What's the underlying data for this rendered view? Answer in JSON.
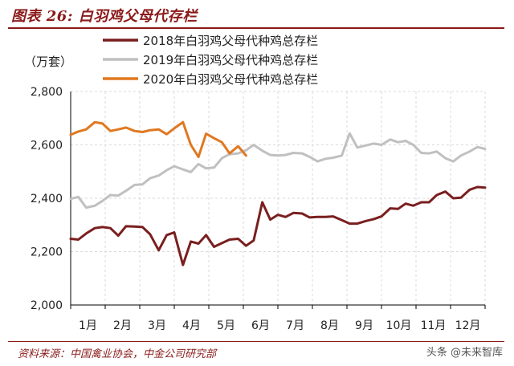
{
  "figure_title": "图表 26: 白羽鸡父母代存栏",
  "source": "资料来源：中国禽业协会，中金公司研究部",
  "watermark": "头条 @未来智库",
  "chart_data": {
    "type": "line",
    "unit_label": "（万套）",
    "ylim": [
      2000,
      2800
    ],
    "yticks": [
      2000,
      2200,
      2400,
      2600,
      2800
    ],
    "ytick_labels": [
      "2,000",
      "2,200",
      "2,400",
      "2,600",
      "2,800"
    ],
    "xlim": [
      0,
      12
    ],
    "xticks": [
      0,
      1,
      2,
      3,
      4,
      5,
      6,
      7,
      8,
      9,
      10,
      11,
      12
    ],
    "month_labels": [
      "1月",
      "2月",
      "3月",
      "4月",
      "5月",
      "6月",
      "7月",
      "8月",
      "9月",
      "10月",
      "11月",
      "12月"
    ],
    "grid": true,
    "legend_position": "top",
    "series": [
      {
        "name": "2018年白羽鸡父母代种鸡总存栏",
        "color": "#7a1f1f",
        "x": [
          0.0,
          0.22,
          0.45,
          0.7,
          0.92,
          1.15,
          1.38,
          1.6,
          1.85,
          2.08,
          2.3,
          2.55,
          2.78,
          3.0,
          3.25,
          3.48,
          3.7,
          3.92,
          4.15,
          4.38,
          4.6,
          4.85,
          5.08,
          5.3,
          5.55,
          5.78,
          6.0,
          6.22,
          6.45,
          6.7,
          6.92,
          7.15,
          7.38,
          7.6,
          7.85,
          8.08,
          8.3,
          8.55,
          8.78,
          9.0,
          9.25,
          9.48,
          9.7,
          9.92,
          10.15,
          10.38,
          10.6,
          10.85,
          11.08,
          11.3,
          11.55,
          11.78,
          12.0
        ],
        "y": [
          2248,
          2245,
          2268,
          2288,
          2292,
          2288,
          2260,
          2295,
          2294,
          2292,
          2265,
          2205,
          2262,
          2272,
          2150,
          2238,
          2230,
          2262,
          2218,
          2232,
          2245,
          2248,
          2222,
          2242,
          2385,
          2320,
          2338,
          2330,
          2345,
          2343,
          2328,
          2330,
          2330,
          2332,
          2318,
          2305,
          2305,
          2315,
          2322,
          2332,
          2362,
          2360,
          2380,
          2372,
          2385,
          2385,
          2412,
          2425,
          2400,
          2402,
          2432,
          2442,
          2440
        ]
      },
      {
        "name": "2019年白羽鸡父母代种鸡总存栏",
        "color": "#c0c0c0",
        "x": [
          0.0,
          0.22,
          0.45,
          0.7,
          0.92,
          1.15,
          1.38,
          1.6,
          1.85,
          2.08,
          2.3,
          2.55,
          2.78,
          3.0,
          3.25,
          3.48,
          3.7,
          3.92,
          4.15,
          4.38,
          4.6,
          4.85,
          5.08,
          5.3,
          5.55,
          5.78,
          6.0,
          6.22,
          6.45,
          6.7,
          6.92,
          7.15,
          7.38,
          7.6,
          7.85,
          8.08,
          8.3,
          8.55,
          8.78,
          9.0,
          9.25,
          9.48,
          9.7,
          9.92,
          10.15,
          10.38,
          10.6,
          10.85,
          11.08,
          11.3,
          11.55,
          11.78,
          12.0
        ],
        "y": [
          2398,
          2405,
          2365,
          2372,
          2390,
          2412,
          2410,
          2428,
          2450,
          2452,
          2475,
          2485,
          2505,
          2520,
          2508,
          2498,
          2528,
          2512,
          2515,
          2550,
          2565,
          2568,
          2580,
          2600,
          2578,
          2562,
          2560,
          2562,
          2570,
          2568,
          2555,
          2538,
          2548,
          2552,
          2560,
          2643,
          2590,
          2598,
          2605,
          2600,
          2620,
          2610,
          2615,
          2600,
          2570,
          2568,
          2575,
          2550,
          2538,
          2560,
          2575,
          2592,
          2585
        ]
      },
      {
        "name": "2020年白羽鸡父母代种鸡总存栏",
        "color": "#e07820",
        "x": [
          0.0,
          0.22,
          0.45,
          0.7,
          0.92,
          1.15,
          1.38,
          1.6,
          1.85,
          2.08,
          2.3,
          2.55,
          2.78,
          3.0,
          3.25,
          3.48,
          3.7,
          3.92,
          4.15,
          4.38,
          4.6,
          4.85,
          5.08
        ],
        "y": [
          2638,
          2650,
          2658,
          2685,
          2680,
          2652,
          2658,
          2665,
          2652,
          2648,
          2655,
          2658,
          2640,
          2662,
          2685,
          2600,
          2555,
          2642,
          2625,
          2610,
          2568,
          2595,
          2560
        ]
      }
    ]
  }
}
